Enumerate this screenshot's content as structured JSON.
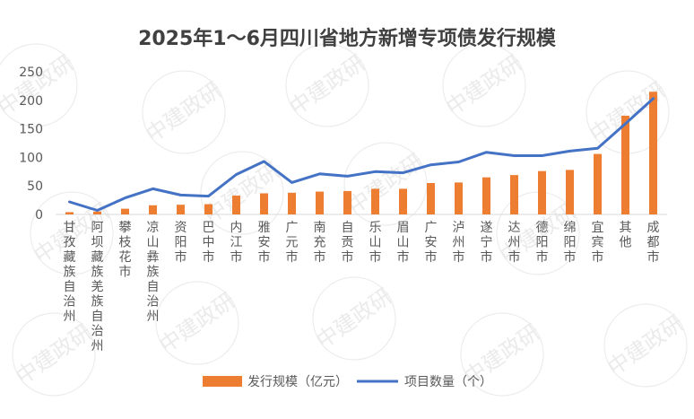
{
  "chart_data": {
    "type": "bar+line",
    "title": "2025年1～6月四川省地方新增专项债发行规模",
    "categories": [
      "甘孜藏族自治州",
      "阿坝藏族羌族自治州",
      "攀枝花市",
      "凉山彝族自治州",
      "资阳市",
      "巴中市",
      "内江市",
      "雅安市",
      "广元市",
      "南充市",
      "自贡市",
      "乐山市",
      "眉山市",
      "广安市",
      "泸州市",
      "遂宁市",
      "达州市",
      "德阳市",
      "绵阳市",
      "宜宾市",
      "其他",
      "成都市"
    ],
    "series": [
      {
        "name": "发行规模（亿元）",
        "type": "bar",
        "color": "#ED7D31",
        "values": [
          4,
          5,
          10,
          16,
          17,
          18,
          33,
          37,
          38,
          40,
          41,
          45,
          45,
          55,
          56,
          65,
          69,
          76,
          78,
          106,
          173,
          215
        ]
      },
      {
        "name": "项目数量（个）",
        "type": "line",
        "color": "#4472C4",
        "values": [
          22,
          7,
          29,
          45,
          34,
          32,
          70,
          93,
          56,
          71,
          67,
          75,
          73,
          87,
          92,
          109,
          103,
          103,
          111,
          116,
          159,
          203
        ]
      }
    ],
    "yticks": [
      "0",
      "50",
      "100",
      "150",
      "200",
      "250"
    ],
    "ylim": [
      0,
      250
    ],
    "grid": false,
    "legend": "bottom"
  },
  "watermark": "中建政研"
}
